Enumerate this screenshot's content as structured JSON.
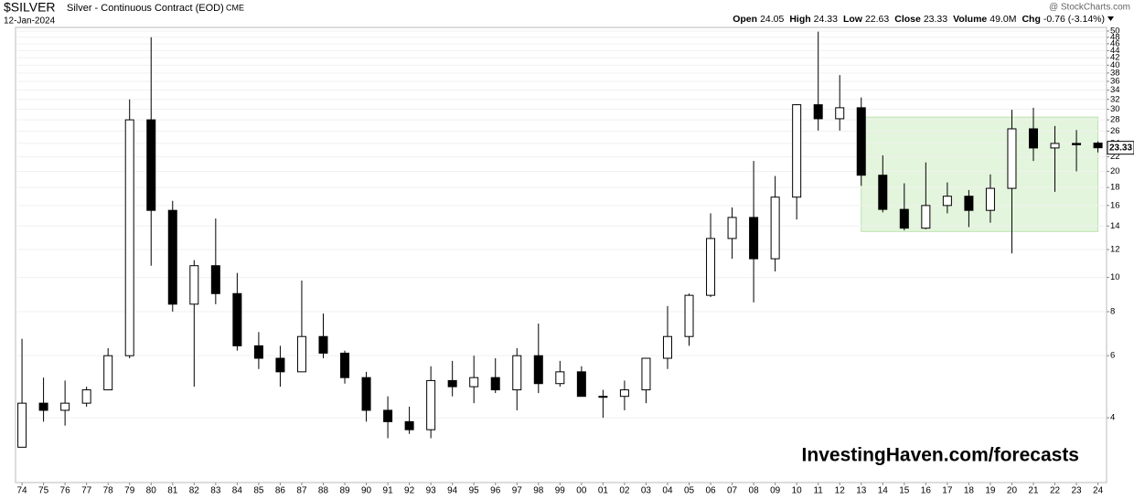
{
  "chart_data": {
    "type": "candlestick",
    "symbol": "$SILVER",
    "title": "Silver - Continuous Contract (EOD)",
    "exchange": "CME",
    "date": "12-Jan-2024",
    "source": "@ StockCharts.com",
    "quote": [
      {
        "label": "Open",
        "value": "24.05"
      },
      {
        "label": "High",
        "value": "24.33"
      },
      {
        "label": "Low",
        "value": "22.63"
      },
      {
        "label": "Close",
        "value": "23.33"
      },
      {
        "label": "Volume",
        "value": "49.0M"
      },
      {
        "label": "Chg",
        "value": "-0.76 (-3.14%)"
      }
    ],
    "watermark": "InvestingHaven.com/forecasts",
    "last_price": 23.33,
    "log_scale": true,
    "x": [
      1974,
      1975,
      1976,
      1977,
      1978,
      1979,
      1980,
      1981,
      1982,
      1983,
      1984,
      1985,
      1986,
      1987,
      1988,
      1989,
      1990,
      1991,
      1992,
      1993,
      1994,
      1995,
      1996,
      1997,
      1998,
      1999,
      2000,
      2001,
      2002,
      2003,
      2004,
      2005,
      2006,
      2007,
      2008,
      2009,
      2010,
      2011,
      2012,
      2013,
      2014,
      2015,
      2016,
      2017,
      2018,
      2019,
      2020,
      2021,
      2022,
      2023,
      2024
    ],
    "open": [
      3.3,
      4.4,
      4.2,
      4.4,
      4.8,
      6.0,
      28,
      15.5,
      8.4,
      10.8,
      9.0,
      6.4,
      5.9,
      5.4,
      6.8,
      6.1,
      5.2,
      4.2,
      3.9,
      3.7,
      5.1,
      4.9,
      5.2,
      4.8,
      6.0,
      5.0,
      5.4,
      4.6,
      4.6,
      4.8,
      5.9,
      6.8,
      8.9,
      12.9,
      14.8,
      11.3,
      16.9,
      30.9,
      28.2,
      30.3,
      19.5,
      15.6,
      13.8,
      16.0,
      17.0,
      15.5,
      17.9,
      26.4,
      23.3,
      24.0,
      24.05
    ],
    "high": [
      6.7,
      5.2,
      5.1,
      4.9,
      6.3,
      32,
      48,
      16.5,
      11.2,
      14.7,
      10.3,
      7.0,
      6.4,
      9.8,
      7.9,
      6.2,
      5.4,
      4.6,
      4.3,
      5.6,
      5.8,
      6.0,
      5.9,
      6.3,
      7.4,
      5.8,
      5.6,
      4.8,
      5.1,
      5.9,
      8.3,
      9.0,
      15.2,
      15.8,
      21.4,
      19.4,
      31.0,
      49.8,
      37.5,
      32.4,
      22.2,
      18.5,
      21.2,
      18.6,
      17.7,
      19.6,
      29.9,
      30.3,
      26.9,
      26.2,
      24.33
    ],
    "low": [
      3.3,
      3.9,
      3.8,
      4.3,
      4.8,
      5.9,
      10.8,
      8.0,
      4.9,
      8.4,
      6.2,
      5.5,
      4.9,
      5.4,
      5.9,
      5.0,
      3.9,
      3.5,
      3.6,
      3.5,
      4.6,
      4.4,
      4.7,
      4.2,
      4.7,
      4.9,
      4.6,
      4.0,
      4.2,
      4.4,
      5.5,
      6.4,
      8.8,
      11.3,
      8.5,
      10.4,
      14.6,
      26.1,
      26.1,
      18.2,
      15.3,
      13.6,
      13.7,
      15.2,
      13.9,
      14.3,
      11.7,
      21.4,
      17.5,
      20.0,
      22.63
    ],
    "close": [
      4.4,
      4.2,
      4.4,
      4.8,
      6.0,
      28,
      15.5,
      8.4,
      10.8,
      9.0,
      6.4,
      5.9,
      5.4,
      6.8,
      6.1,
      5.2,
      4.2,
      3.9,
      3.7,
      5.1,
      4.9,
      5.2,
      4.8,
      6.0,
      5.0,
      5.4,
      4.6,
      4.6,
      4.8,
      5.9,
      6.8,
      8.9,
      12.9,
      14.8,
      11.3,
      16.9,
      30.9,
      28.2,
      30.3,
      19.5,
      15.6,
      13.8,
      16.0,
      17.0,
      15.5,
      17.9,
      26.4,
      23.3,
      24.0,
      23.8,
      23.33
    ],
    "highlight": {
      "x": [
        2013,
        2024
      ],
      "y": [
        13.5,
        28.5
      ],
      "color": "#e3f5dc"
    },
    "xlim": [
      1973.7,
      2024.4
    ],
    "ylim": [
      2.62,
      51.2
    ],
    "xticks": [
      {
        "value": 1974,
        "label": "74"
      },
      {
        "value": 1975,
        "label": "75"
      },
      {
        "value": 1976,
        "label": "76"
      },
      {
        "value": 1977,
        "label": "77"
      },
      {
        "value": 1978,
        "label": "78"
      },
      {
        "value": 1979,
        "label": "79"
      },
      {
        "value": 1980,
        "label": "80"
      },
      {
        "value": 1981,
        "label": "81"
      },
      {
        "value": 1982,
        "label": "82"
      },
      {
        "value": 1983,
        "label": "83"
      },
      {
        "value": 1984,
        "label": "84"
      },
      {
        "value": 1985,
        "label": "85"
      },
      {
        "value": 1986,
        "label": "86"
      },
      {
        "value": 1987,
        "label": "87"
      },
      {
        "value": 1988,
        "label": "88"
      },
      {
        "value": 1989,
        "label": "89"
      },
      {
        "value": 1990,
        "label": "90"
      },
      {
        "value": 1991,
        "label": "91"
      },
      {
        "value": 1992,
        "label": "92"
      },
      {
        "value": 1993,
        "label": "93"
      },
      {
        "value": 1994,
        "label": "94"
      },
      {
        "value": 1995,
        "label": "95"
      },
      {
        "value": 1996,
        "label": "96"
      },
      {
        "value": 1997,
        "label": "97"
      },
      {
        "value": 1998,
        "label": "98"
      },
      {
        "value": 1999,
        "label": "99"
      },
      {
        "value": 2000,
        "label": "00"
      },
      {
        "value": 2001,
        "label": "01"
      },
      {
        "value": 2002,
        "label": "02"
      },
      {
        "value": 2003,
        "label": "03"
      },
      {
        "value": 2004,
        "label": "04"
      },
      {
        "value": 2005,
        "label": "05"
      },
      {
        "value": 2006,
        "label": "06"
      },
      {
        "value": 2007,
        "label": "07"
      },
      {
        "value": 2008,
        "label": "08"
      },
      {
        "value": 2009,
        "label": "09"
      },
      {
        "value": 2010,
        "label": "10"
      },
      {
        "value": 2011,
        "label": "11"
      },
      {
        "value": 2012,
        "label": "12"
      },
      {
        "value": 2013,
        "label": "13"
      },
      {
        "value": 2014,
        "label": "14"
      },
      {
        "value": 2015,
        "label": "15"
      },
      {
        "value": 2016,
        "label": "16"
      },
      {
        "value": 2017,
        "label": "17"
      },
      {
        "value": 2018,
        "label": "18"
      },
      {
        "value": 2019,
        "label": "19"
      },
      {
        "value": 2020,
        "label": "20"
      },
      {
        "value": 2021,
        "label": "21"
      },
      {
        "value": 2022,
        "label": "22"
      },
      {
        "value": 2023,
        "label": "23"
      },
      {
        "value": 2024,
        "label": "24"
      }
    ],
    "yticks": [
      4,
      6,
      8,
      10,
      12,
      14,
      16,
      18,
      20,
      22,
      24,
      26,
      28,
      30,
      32,
      34,
      36,
      38,
      40,
      42,
      44,
      46,
      48,
      50
    ],
    "up_color": "#ffffff",
    "down_color": "#000000"
  }
}
